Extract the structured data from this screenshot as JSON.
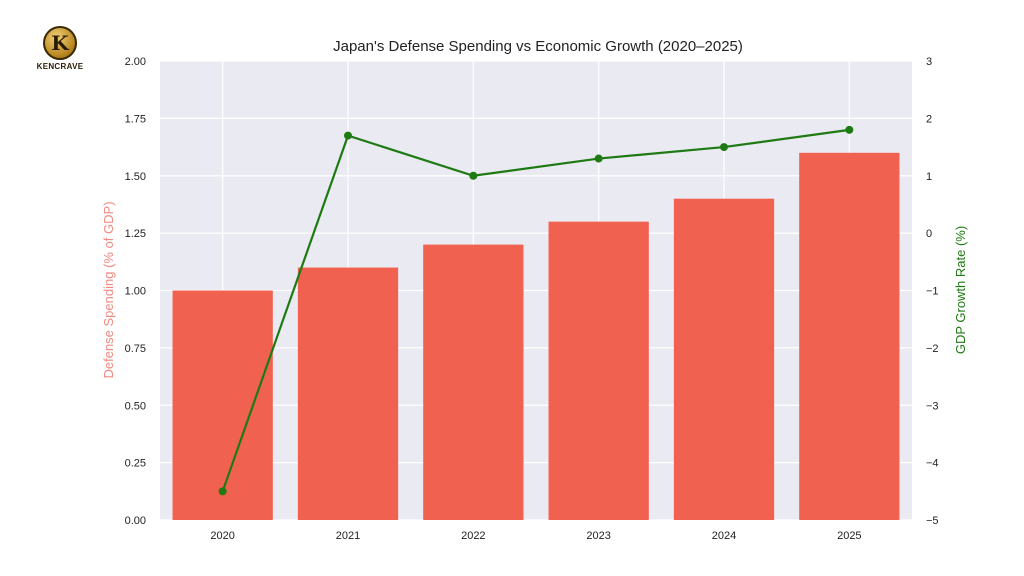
{
  "brand": {
    "logo_letter": "K",
    "logo_text": "KENCRAVE"
  },
  "colors": {
    "bar": "#f0614f",
    "line": "#1e7a12",
    "left_axis_label": "#f08a80",
    "right_axis_label": "#1e7a12",
    "plot_bg": "#eaeaf2",
    "grid": "#ffffff"
  },
  "chart_data": {
    "type": "bar",
    "title": "Japan's Defense Spending vs Economic Growth (2020–2025)",
    "categories": [
      "2020",
      "2021",
      "2022",
      "2023",
      "2024",
      "2025"
    ],
    "ylabel": "Defense Spending (% of GDP)",
    "y2label": "GDP Growth Rate (%)",
    "ylim": [
      0,
      2.0
    ],
    "y2lim": [
      -5,
      3
    ],
    "yticks": [
      "0.00",
      "0.25",
      "0.50",
      "0.75",
      "1.00",
      "1.25",
      "1.50",
      "1.75",
      "2.00"
    ],
    "y2ticks": [
      "−5",
      "−4",
      "−3",
      "−2",
      "−1",
      "0",
      "1",
      "2",
      "3"
    ],
    "grid": true,
    "series": [
      {
        "kind": "bar",
        "axis": "left",
        "values": [
          1.0,
          1.1,
          1.2,
          1.3,
          1.4,
          1.6
        ]
      },
      {
        "kind": "line",
        "axis": "right",
        "values": [
          -4.5,
          1.7,
          1.0,
          1.3,
          1.5,
          1.8
        ]
      }
    ]
  }
}
